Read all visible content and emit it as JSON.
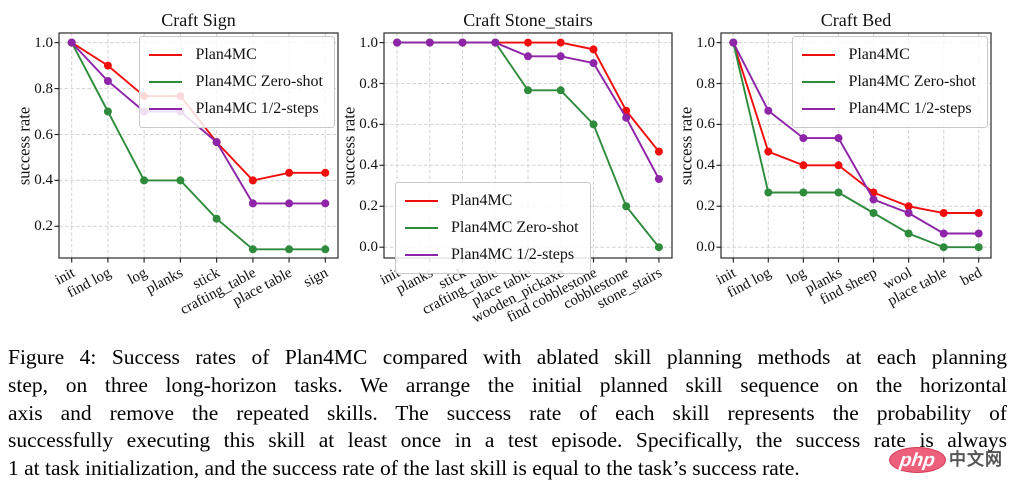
{
  "figure": {
    "label": "Figure 4:",
    "caption_lines": [
      "Figure 4: Success rates of Plan4MC compared with ablated skill planning methods at each planning",
      "step, on three long-horizon tasks. We arrange the initial planned skill sequence on the horizontal",
      "axis and remove the repeated skills. The success rate of each skill represents the probability of",
      "successfully executing this skill at least once in a test episode. Specifically, the success rate is always",
      "1 at task initialization, and the success rate of the last skill is equal to the task’s success rate."
    ]
  },
  "watermark": {
    "logo_text": "php",
    "site_text": "中文网",
    "ellipse_color": "#ea4968",
    "text_color": "#373737"
  },
  "chart_data": [
    {
      "type": "line",
      "title": "Craft Sign",
      "ylabel": "success rate",
      "categories": [
        "init",
        "find log",
        "log",
        "planks",
        "stick",
        "crafting_table",
        "place table",
        "sign"
      ],
      "series": [
        {
          "name": "Plan4MC",
          "color": "#f20d0d",
          "values": [
            1.0,
            0.9,
            0.767,
            0.767,
            0.567,
            0.4,
            0.433,
            0.433
          ]
        },
        {
          "name": "Plan4MC Zero-shot",
          "color": "#2e8b3c",
          "values": [
            1.0,
            0.7,
            0.4,
            0.4,
            0.233,
            0.1,
            0.1,
            0.1
          ]
        },
        {
          "name": "Plan4MC 1/2-steps",
          "color": "#8e24a8",
          "values": [
            1.0,
            0.833,
            0.7,
            0.7,
            0.567,
            0.3,
            0.3,
            0.3
          ]
        }
      ],
      "yticks": [
        0.2,
        0.4,
        0.6,
        0.8,
        1.0
      ],
      "ylim": [
        0.062,
        1.042
      ],
      "grid": true,
      "legend": "upper right"
    },
    {
      "type": "line",
      "title": "Craft Stone_stairs",
      "ylabel": "success rate",
      "categories": [
        "init",
        "planks",
        "stick",
        "crafting_table",
        "place table",
        "wooden_pickaxe",
        "find cobblestone",
        "cobblestone",
        "stone_stairs"
      ],
      "series": [
        {
          "name": "Plan4MC",
          "color": "#f20d0d",
          "values": [
            1.0,
            1.0,
            1.0,
            1.0,
            1.0,
            1.0,
            0.967,
            0.667,
            0.467
          ]
        },
        {
          "name": "Plan4MC Zero-shot",
          "color": "#2e8b3c",
          "values": [
            1.0,
            1.0,
            1.0,
            1.0,
            0.767,
            0.767,
            0.6,
            0.2,
            0.0
          ]
        },
        {
          "name": "Plan4MC 1/2-steps",
          "color": "#8e24a8",
          "values": [
            1.0,
            1.0,
            1.0,
            1.0,
            0.933,
            0.933,
            0.9,
            0.633,
            0.333
          ]
        }
      ],
      "yticks": [
        0.0,
        0.2,
        0.4,
        0.6,
        0.8,
        1.0
      ],
      "ylim": [
        -0.053,
        1.047
      ],
      "grid": true,
      "legend": "lower left"
    },
    {
      "type": "line",
      "title": "Craft Bed",
      "ylabel": "success rate",
      "categories": [
        "init",
        "find log",
        "log",
        "planks",
        "find sheep",
        "wool",
        "place table",
        "bed"
      ],
      "series": [
        {
          "name": "Plan4MC",
          "color": "#f20d0d",
          "values": [
            1.0,
            0.467,
            0.4,
            0.4,
            0.267,
            0.2,
            0.167,
            0.167
          ]
        },
        {
          "name": "Plan4MC Zero-shot",
          "color": "#2e8b3c",
          "values": [
            1.0,
            0.267,
            0.267,
            0.267,
            0.167,
            0.067,
            0.0,
            0.0
          ]
        },
        {
          "name": "Plan4MC 1/2-steps",
          "color": "#8e24a8",
          "values": [
            1.0,
            0.667,
            0.533,
            0.533,
            0.233,
            0.167,
            0.067,
            0.067
          ]
        }
      ],
      "yticks": [
        0.0,
        0.2,
        0.4,
        0.6,
        0.8,
        1.0
      ],
      "ylim": [
        -0.053,
        1.047
      ],
      "grid": true,
      "legend": "upper right"
    }
  ]
}
